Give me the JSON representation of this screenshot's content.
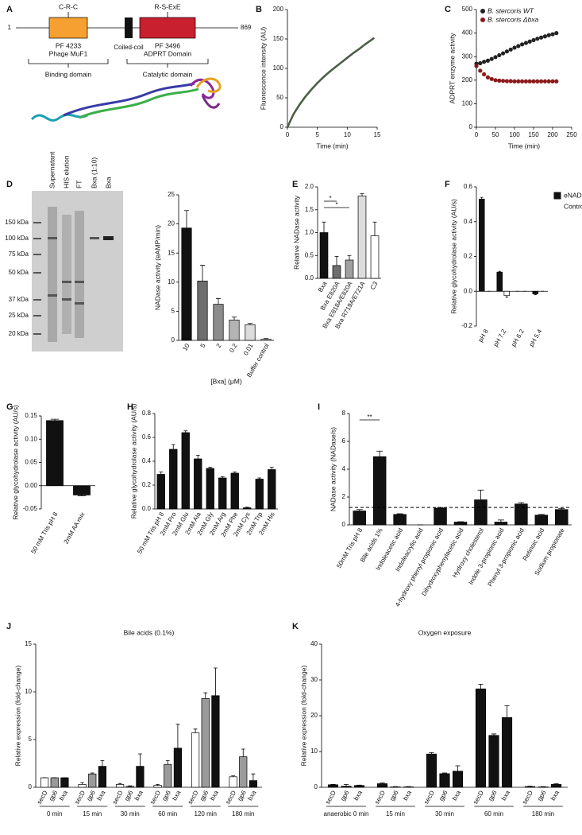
{
  "diagram": {
    "panel": "A",
    "start": "1",
    "end": "869",
    "domain1_top": "C-R-C",
    "domain1": [
      "PF 4233",
      "Phage MuF1"
    ],
    "coil": "Coiled-coil",
    "domain2_top": "R-S-ExE",
    "domain2": [
      "PF 3496",
      "ADPRT Domain"
    ],
    "region1": "Binding domain",
    "region2": "Catalytic domain"
  },
  "gel": {
    "panel": "D",
    "lanes": [
      "Supernatant",
      "HIS elution",
      "FT",
      "Bxa (1:10)",
      "Bxa"
    ],
    "ladder": [
      "150 kDa",
      "100 kDa",
      "75 kDa",
      "50 kDa",
      "37 kDa",
      "25 kDa",
      "20 kDa"
    ]
  },
  "chart_data": [
    {
      "panel": "B",
      "type": "line",
      "ylabel": "Fluorescence intensity (AU)",
      "xlabel": "Time (min)",
      "x": [
        0,
        1,
        2,
        3,
        4,
        5,
        6,
        7,
        8,
        9,
        10,
        11,
        12,
        13,
        14,
        14.5
      ],
      "series": [
        {
          "color": "#4d5f48",
          "values": [
            0,
            22,
            38,
            52,
            64,
            75,
            85,
            94,
            102,
            110,
            118,
            126,
            133,
            141,
            148,
            152
          ]
        }
      ],
      "xlim": [
        0,
        15
      ],
      "xticks": [
        0,
        5,
        10,
        15
      ],
      "ylim": [
        0,
        200
      ],
      "yticks": [
        0,
        50,
        100,
        150,
        200
      ]
    },
    {
      "panel": "C",
      "type": "scatter",
      "ylabel": "ADPRT enzyme activity",
      "xlabel": "Time (min)",
      "x": [
        0,
        10,
        20,
        30,
        40,
        50,
        60,
        70,
        80,
        90,
        100,
        110,
        120,
        130,
        140,
        150,
        160,
        170,
        180,
        190,
        200,
        210
      ],
      "series": [
        {
          "name": "B. stercoris WT",
          "color": "#222222",
          "values": [
            270,
            272,
            278,
            283,
            290,
            298,
            306,
            314,
            322,
            330,
            338,
            345,
            352,
            358,
            364,
            370,
            376,
            381,
            386,
            391,
            395,
            400
          ]
        },
        {
          "name": "B. stercoris Δbxa",
          "color": "#8b1a1a",
          "values": [
            260,
            240,
            225,
            212,
            205,
            200,
            198,
            197,
            196,
            196,
            195,
            195,
            195,
            195,
            195,
            195,
            195,
            195,
            195,
            195,
            195,
            195
          ]
        }
      ],
      "xlim": [
        0,
        250
      ],
      "xticks": [
        0,
        50,
        100,
        150,
        200,
        250
      ],
      "ylim": [
        0,
        500
      ],
      "yticks": [
        0,
        100,
        200,
        300,
        400,
        500
      ],
      "legend": "upper left"
    },
    {
      "type": "bar",
      "ylabel": "NADase activity (eAMP/min)",
      "xlabel": "[Bxa] (μM)",
      "categories": [
        "10",
        "5",
        "2",
        "0.2",
        "0.01",
        "Buffer control"
      ],
      "values": [
        19.3,
        10.2,
        6.2,
        3.5,
        2.7,
        0.2
      ],
      "errors": [
        3,
        2.7,
        1,
        0.5,
        0.2,
        0.1
      ],
      "colors": [
        "#111111",
        "#6e6e6e",
        "#8c8c8c",
        "#b4b4b4",
        "#dcdcdc",
        "#ffffff"
      ],
      "ylim": [
        0,
        25
      ],
      "yticks": [
        0,
        5,
        10,
        15,
        20,
        25
      ]
    },
    {
      "panel": "E",
      "type": "bar",
      "ylabel": "Relative NADase activity",
      "categories": [
        "Bxa",
        "Bxa E820A",
        "Bxa E818A/E820A",
        "Bxa R719A/E721A",
        "C3"
      ],
      "values": [
        1.0,
        0.28,
        0.4,
        1.8,
        0.93
      ],
      "errors": [
        0.23,
        0.2,
        0.1,
        0.05,
        0.3
      ],
      "colors": [
        "#111111",
        "#6e6e6e",
        "#a0a0a0",
        "#dcdcdc",
        "#ffffff"
      ],
      "annotations": [
        "*",
        "*"
      ],
      "ylim": [
        0,
        2
      ],
      "yticks": [
        {
          "value": 0,
          "label": "0.0"
        },
        0.5,
        {
          "value": 1,
          "label": "1.0"
        },
        1.5,
        {
          "value": 2,
          "label": "2.0"
        }
      ]
    },
    {
      "panel": "F",
      "type": "bar",
      "ylabel": "Relative glycohydrolase activity (AU/s)",
      "categories": [
        "pH 8",
        "pH 7.2",
        "pH 6.2",
        "pH 5.4"
      ],
      "series": [
        {
          "name": "eNAD",
          "color": "#111111",
          "values": [
            0.53,
            0.11,
            0.0,
            -0.015
          ],
          "errors": [
            0.01,
            0.005,
            0,
            0.005
          ]
        },
        {
          "name": "Control",
          "color": "#ffffff",
          "values": [
            0,
            -0.025,
            0,
            0
          ],
          "errors": [
            0,
            0.01,
            0,
            0
          ]
        }
      ],
      "legend": "right",
      "ylim": [
        -0.2,
        0.6
      ],
      "yticks": [
        -0.2,
        {
          "value": 0,
          "label": "0.0"
        },
        0.2,
        0.4,
        0.6
      ]
    },
    {
      "panel": "G",
      "type": "bar",
      "ylabel": "Relative glycohydrolase activity (AU/s)",
      "categories": [
        "50 mM Tris pH 8",
        "2mM AA mix"
      ],
      "values": [
        0.14,
        -0.02
      ],
      "errors": [
        0.003,
        0.002
      ],
      "color": "#111111",
      "ylim": [
        -0.05,
        0.15
      ],
      "yticks": [
        -0.05,
        {
          "value": 0,
          "label": "0.00"
        },
        0.05,
        {
          "value": 0.1,
          "label": "0.10"
        },
        0.15
      ]
    },
    {
      "panel": "H",
      "type": "bar",
      "ylabel": "Relative glycohydrolase activity (AU/s)",
      "categories": [
        "50 mM Tris pH 8",
        "2mM Pro",
        "2mM Glu",
        "2mM Ala",
        "2mM Gly",
        "2mM Arg",
        "2mM Phe",
        "2mM Cys",
        "2mM Trp",
        "2mM His"
      ],
      "values": [
        0.29,
        0.5,
        0.64,
        0.42,
        0.34,
        0.26,
        0.3,
        0.01,
        0.25,
        0.33
      ],
      "errors": [
        0.02,
        0.04,
        0.015,
        0.03,
        0.01,
        0.01,
        0.01,
        0.005,
        0.01,
        0.02
      ],
      "color": "#111111",
      "ylim": [
        0,
        0.8
      ],
      "yticks": [
        {
          "value": 0,
          "label": "0.0"
        },
        0.2,
        0.4,
        0.6,
        0.8
      ]
    },
    {
      "panel": "I",
      "type": "bar",
      "ylabel": "NADase activity (NADase/s)",
      "categories": [
        "50mM Tris pH 8",
        "Bile acids 1%",
        "Indoleacetic acid",
        "Indoleacrylic acid",
        "4-hydroxy phenyl propionic acid",
        "Dihydroxyphenylacetic acid",
        "Hydroxy cholesterol",
        "Indole 3-propionic acid",
        "Phenyl 3-propionic acid",
        "Retinoic acid",
        "Sodium propionate"
      ],
      "values": [
        1.0,
        4.9,
        0.75,
        0,
        1.2,
        0.2,
        1.8,
        0.2,
        1.5,
        0.7,
        1.1
      ],
      "errors": [
        0.1,
        0.4,
        0.05,
        0,
        0.05,
        0.03,
        0.7,
        0.15,
        0.1,
        0.05,
        0.08
      ],
      "color": "#111111",
      "ref_line": 1.25,
      "annotations": [
        "**"
      ],
      "ylim": [
        0,
        8
      ],
      "yticks": [
        0,
        2,
        4,
        6,
        8
      ]
    },
    {
      "panel": "J",
      "type": "bar",
      "title": "Bile acids (0.1%)",
      "ylabel": "Relative expression (fold-change)",
      "categories": [
        "0 min",
        "15 min",
        "30 min",
        "60 min",
        "120 min",
        "180 min"
      ],
      "series": [
        {
          "name": "secD",
          "color": "#ffffff",
          "values": [
            1,
            0.3,
            0.3,
            0.2,
            5.7,
            1.1
          ],
          "errors": [
            0,
            0.2,
            0.1,
            0.1,
            0.4,
            0.1
          ]
        },
        {
          "name": "gp6",
          "color": "#9a9a9a",
          "values": [
            1,
            1.4,
            0.1,
            2.4,
            9.3,
            3.2
          ],
          "errors": [
            0,
            0.1,
            0.05,
            0.4,
            0.6,
            0.8
          ]
        },
        {
          "name": "bxa",
          "color": "#111111",
          "values": [
            1,
            2.2,
            2.2,
            4.1,
            9.6,
            0.7
          ],
          "errors": [
            0,
            0.6,
            1.3,
            2.5,
            2.9,
            0.7
          ]
        }
      ],
      "ylim": [
        0,
        15
      ],
      "yticks": [
        0,
        5,
        10,
        15
      ]
    },
    {
      "panel": "K",
      "type": "bar",
      "title": "Oxygen exposure",
      "ylabel": "Relative expression (fold-change)",
      "categories": [
        "anaerobic 0 min",
        "15 min",
        "30 min",
        "60 min",
        "180 min"
      ],
      "series": [
        {
          "name": "secD",
          "color": "#111111",
          "values": [
            0.7,
            1,
            9.3,
            27.5,
            0.2
          ],
          "errors": [
            0.1,
            0.2,
            0.4,
            1.3,
            0.1
          ]
        },
        {
          "name": "gp6",
          "color": "#111111",
          "values": [
            0.3,
            0.1,
            3.8,
            14.5,
            0.1
          ],
          "errors": [
            0.5,
            0.1,
            0.2,
            0.4,
            0.1
          ]
        },
        {
          "name": "bxa",
          "color": "#111111",
          "values": [
            0.5,
            0.1,
            4.5,
            19.5,
            0.8
          ],
          "errors": [
            0.1,
            0.1,
            1.5,
            3.3,
            0.2
          ]
        }
      ],
      "ylim": [
        0,
        40
      ],
      "yticks": [
        0,
        10,
        20,
        30,
        40
      ]
    }
  ]
}
